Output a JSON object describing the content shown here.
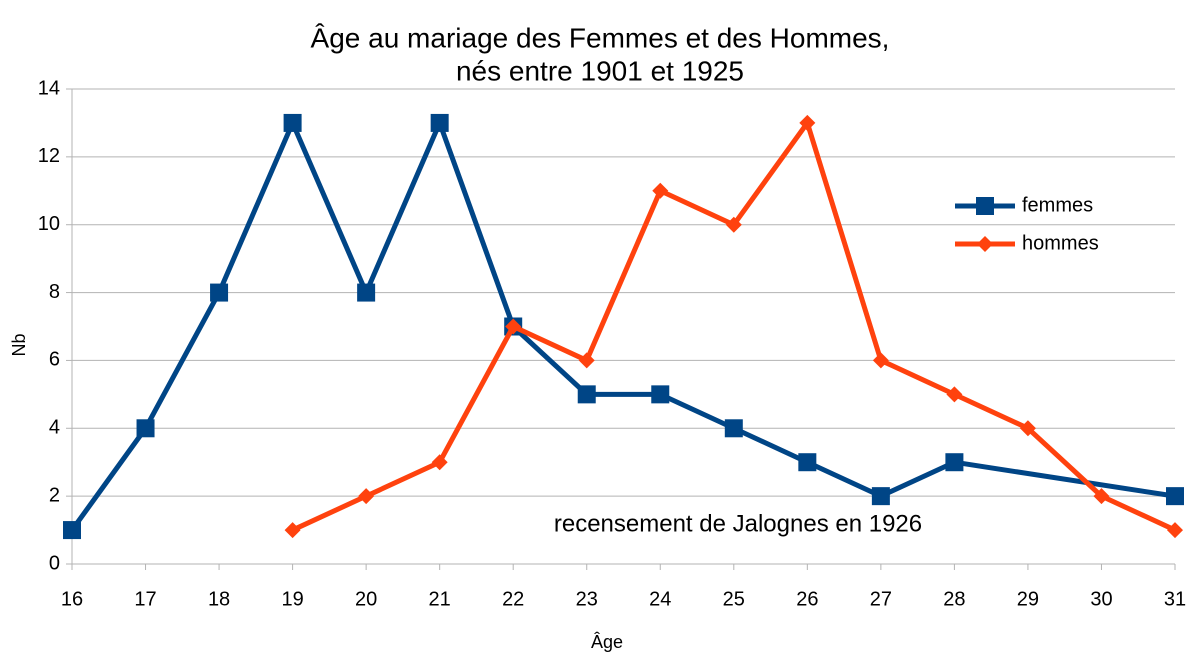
{
  "chart_data": {
    "type": "line",
    "title": [
      "Âge au mariage des Femmes et des Hommes,",
      "nés entre 1901 et 1925"
    ],
    "xlabel": "Âge",
    "ylabel": "Nb",
    "annotation": "recensement de Jalognes en 1926",
    "xlim": [
      16,
      31
    ],
    "xticks": [
      16,
      17,
      18,
      19,
      20,
      21,
      22,
      23,
      24,
      25,
      26,
      27,
      28,
      29,
      30,
      31
    ],
    "ylim": [
      0,
      14
    ],
    "yticks": [
      0,
      2,
      4,
      6,
      8,
      10,
      12,
      14
    ],
    "grid": true,
    "legend": "right",
    "series": [
      {
        "name": "femmes",
        "color": "#004586",
        "marker": "square",
        "x": [
          16,
          17,
          18,
          19,
          20,
          21,
          22,
          23,
          24,
          25,
          26,
          27,
          28,
          31
        ],
        "values": [
          1,
          4,
          8,
          13,
          8,
          13,
          7,
          5,
          5,
          4,
          3,
          2,
          3,
          2
        ]
      },
      {
        "name": "hommes",
        "color": "#ff420e",
        "marker": "diamond",
        "x": [
          19,
          20,
          21,
          22,
          23,
          24,
          25,
          26,
          27,
          28,
          29,
          30,
          31
        ],
        "values": [
          1,
          2,
          3,
          7,
          6,
          11,
          10,
          13,
          6,
          5,
          4,
          2,
          1
        ]
      }
    ]
  }
}
